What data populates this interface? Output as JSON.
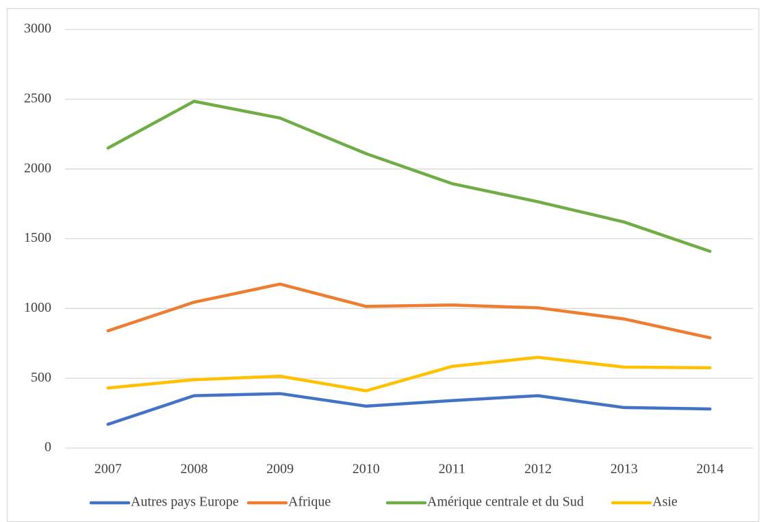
{
  "chart_data": {
    "type": "line",
    "categories": [
      "2007",
      "2008",
      "2009",
      "2010",
      "2011",
      "2012",
      "2013",
      "2014"
    ],
    "series": [
      {
        "name": "Autres pays Europe",
        "color": "#4472c4",
        "values": [
          170,
          375,
          390,
          300,
          340,
          375,
          290,
          280
        ]
      },
      {
        "name": "Afrique",
        "color": "#ed7d31",
        "values": [
          840,
          1045,
          1175,
          1015,
          1025,
          1005,
          925,
          790
        ]
      },
      {
        "name": "Amérique centrale et du Sud",
        "color": "#70ad47",
        "values": [
          2150,
          2485,
          2365,
          2110,
          1895,
          1765,
          1620,
          1410
        ]
      },
      {
        "name": "Asie",
        "color": "#ffc000",
        "values": [
          430,
          490,
          515,
          410,
          585,
          650,
          580,
          575
        ]
      }
    ],
    "ylim": [
      0,
      3000
    ],
    "yticks": [
      0,
      500,
      1000,
      1500,
      2000,
      2500,
      3000
    ],
    "grid": true,
    "legend": "bottom"
  }
}
